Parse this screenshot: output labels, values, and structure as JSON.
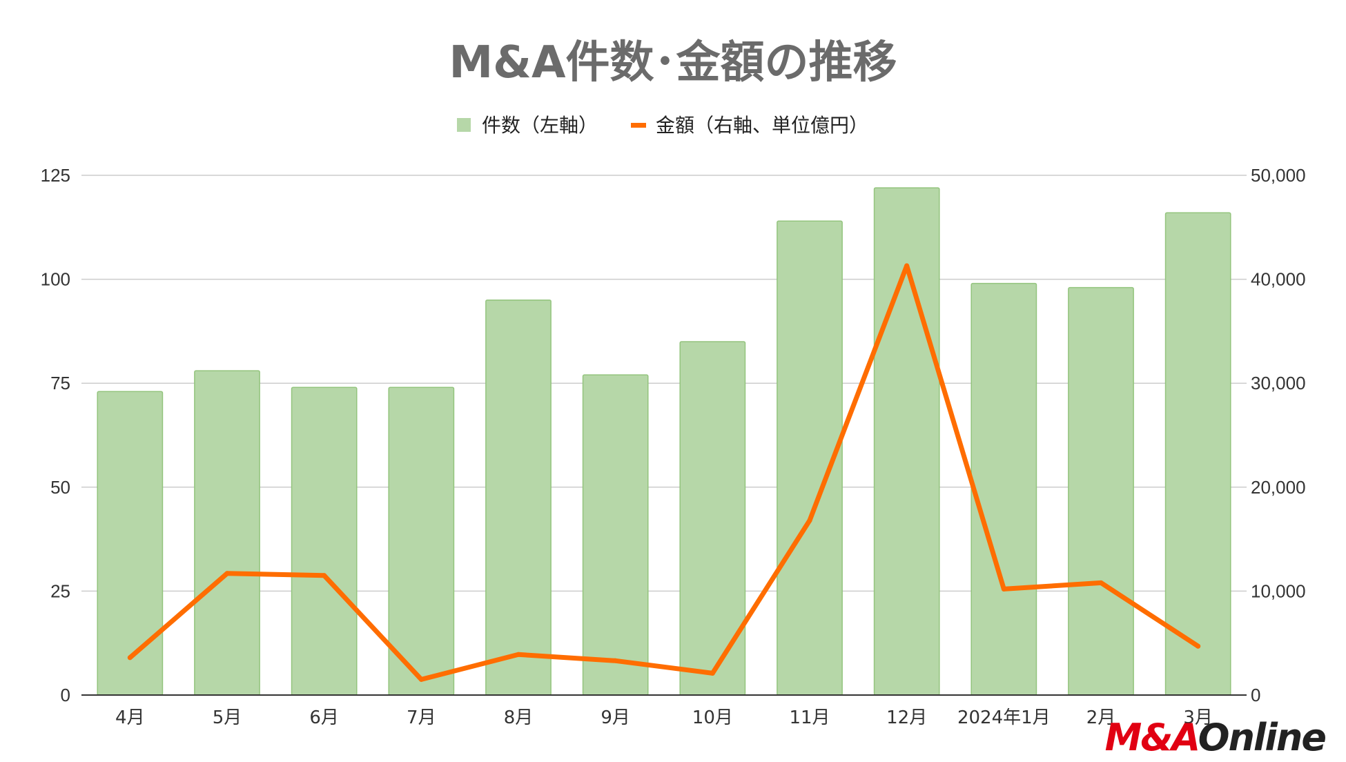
{
  "colors": {
    "bar": "#b6d7a8",
    "bar_stroke": "#93c47d",
    "line": "#ff6d01",
    "grid": "#cccccc",
    "title": "#6b6b6b"
  },
  "chart_data": {
    "type": "bar",
    "title": "M&A件数･金額の推移",
    "categories": [
      "4月",
      "5月",
      "6月",
      "7月",
      "8月",
      "9月",
      "10月",
      "11月",
      "12月",
      "2024年1月",
      "2月",
      "3月"
    ],
    "series": [
      {
        "name": "件数（左軸）",
        "type": "bar",
        "axis": "left",
        "values": [
          73,
          78,
          74,
          74,
          95,
          77,
          85,
          114,
          122,
          99,
          98,
          116
        ]
      },
      {
        "name": "金額（右軸、単位億円）",
        "type": "line",
        "axis": "right",
        "values": [
          3600,
          11700,
          11500,
          1500,
          3900,
          3300,
          2100,
          16800,
          41300,
          10200,
          10800,
          4700
        ]
      }
    ],
    "y_left": {
      "ylim": [
        0,
        125
      ],
      "ticks": [
        "0",
        "25",
        "50",
        "75",
        "100",
        "125"
      ]
    },
    "y_right": {
      "ylim": [
        0,
        50000
      ],
      "ticks": [
        "0",
        "10,000",
        "20,000",
        "30,000",
        "40,000",
        "50,000"
      ]
    },
    "grid": true,
    "legend_position": "top-center"
  },
  "logo": {
    "part1": "M&A",
    "part2": "Online"
  }
}
